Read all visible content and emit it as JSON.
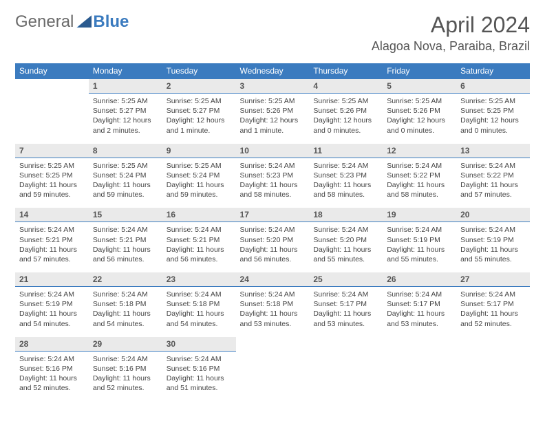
{
  "brand": {
    "part1": "General",
    "part2": "Blue"
  },
  "title": "April 2024",
  "location": "Alagoa Nova, Paraiba, Brazil",
  "colors": {
    "header_blue": "#3b7bbf",
    "day_row_bg": "#eaeaea",
    "text": "#444444",
    "title_text": "#555555",
    "background": "#ffffff"
  },
  "weekdays": [
    "Sunday",
    "Monday",
    "Tuesday",
    "Wednesday",
    "Thursday",
    "Friday",
    "Saturday"
  ],
  "weeks": [
    [
      null,
      {
        "d": "1",
        "sr": "5:25 AM",
        "ss": "5:27 PM",
        "dl": "12 hours and 2 minutes."
      },
      {
        "d": "2",
        "sr": "5:25 AM",
        "ss": "5:27 PM",
        "dl": "12 hours and 1 minute."
      },
      {
        "d": "3",
        "sr": "5:25 AM",
        "ss": "5:26 PM",
        "dl": "12 hours and 1 minute."
      },
      {
        "d": "4",
        "sr": "5:25 AM",
        "ss": "5:26 PM",
        "dl": "12 hours and 0 minutes."
      },
      {
        "d": "5",
        "sr": "5:25 AM",
        "ss": "5:26 PM",
        "dl": "12 hours and 0 minutes."
      },
      {
        "d": "6",
        "sr": "5:25 AM",
        "ss": "5:25 PM",
        "dl": "12 hours and 0 minutes."
      }
    ],
    [
      {
        "d": "7",
        "sr": "5:25 AM",
        "ss": "5:25 PM",
        "dl": "11 hours and 59 minutes."
      },
      {
        "d": "8",
        "sr": "5:25 AM",
        "ss": "5:24 PM",
        "dl": "11 hours and 59 minutes."
      },
      {
        "d": "9",
        "sr": "5:25 AM",
        "ss": "5:24 PM",
        "dl": "11 hours and 59 minutes."
      },
      {
        "d": "10",
        "sr": "5:24 AM",
        "ss": "5:23 PM",
        "dl": "11 hours and 58 minutes."
      },
      {
        "d": "11",
        "sr": "5:24 AM",
        "ss": "5:23 PM",
        "dl": "11 hours and 58 minutes."
      },
      {
        "d": "12",
        "sr": "5:24 AM",
        "ss": "5:22 PM",
        "dl": "11 hours and 58 minutes."
      },
      {
        "d": "13",
        "sr": "5:24 AM",
        "ss": "5:22 PM",
        "dl": "11 hours and 57 minutes."
      }
    ],
    [
      {
        "d": "14",
        "sr": "5:24 AM",
        "ss": "5:21 PM",
        "dl": "11 hours and 57 minutes."
      },
      {
        "d": "15",
        "sr": "5:24 AM",
        "ss": "5:21 PM",
        "dl": "11 hours and 56 minutes."
      },
      {
        "d": "16",
        "sr": "5:24 AM",
        "ss": "5:21 PM",
        "dl": "11 hours and 56 minutes."
      },
      {
        "d": "17",
        "sr": "5:24 AM",
        "ss": "5:20 PM",
        "dl": "11 hours and 56 minutes."
      },
      {
        "d": "18",
        "sr": "5:24 AM",
        "ss": "5:20 PM",
        "dl": "11 hours and 55 minutes."
      },
      {
        "d": "19",
        "sr": "5:24 AM",
        "ss": "5:19 PM",
        "dl": "11 hours and 55 minutes."
      },
      {
        "d": "20",
        "sr": "5:24 AM",
        "ss": "5:19 PM",
        "dl": "11 hours and 55 minutes."
      }
    ],
    [
      {
        "d": "21",
        "sr": "5:24 AM",
        "ss": "5:19 PM",
        "dl": "11 hours and 54 minutes."
      },
      {
        "d": "22",
        "sr": "5:24 AM",
        "ss": "5:18 PM",
        "dl": "11 hours and 54 minutes."
      },
      {
        "d": "23",
        "sr": "5:24 AM",
        "ss": "5:18 PM",
        "dl": "11 hours and 54 minutes."
      },
      {
        "d": "24",
        "sr": "5:24 AM",
        "ss": "5:18 PM",
        "dl": "11 hours and 53 minutes."
      },
      {
        "d": "25",
        "sr": "5:24 AM",
        "ss": "5:17 PM",
        "dl": "11 hours and 53 minutes."
      },
      {
        "d": "26",
        "sr": "5:24 AM",
        "ss": "5:17 PM",
        "dl": "11 hours and 53 minutes."
      },
      {
        "d": "27",
        "sr": "5:24 AM",
        "ss": "5:17 PM",
        "dl": "11 hours and 52 minutes."
      }
    ],
    [
      {
        "d": "28",
        "sr": "5:24 AM",
        "ss": "5:16 PM",
        "dl": "11 hours and 52 minutes."
      },
      {
        "d": "29",
        "sr": "5:24 AM",
        "ss": "5:16 PM",
        "dl": "11 hours and 52 minutes."
      },
      {
        "d": "30",
        "sr": "5:24 AM",
        "ss": "5:16 PM",
        "dl": "11 hours and 51 minutes."
      },
      null,
      null,
      null,
      null
    ]
  ]
}
